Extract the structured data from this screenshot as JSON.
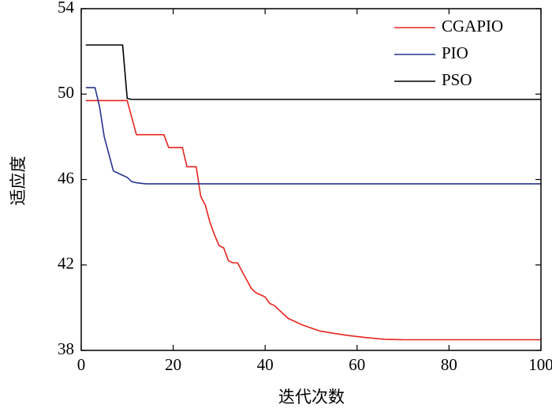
{
  "chart_data": {
    "type": "line",
    "title": "",
    "xlabel": "迭代次数",
    "ylabel": "适应度",
    "xlim": [
      0,
      100
    ],
    "ylim": [
      38,
      54
    ],
    "xticks": [
      0,
      20,
      40,
      60,
      80,
      100
    ],
    "yticks": [
      38,
      42,
      46,
      50,
      54
    ],
    "xtick_labels": [
      "0",
      "20",
      "40",
      "60",
      "80",
      "100"
    ],
    "ytick_labels": [
      "38",
      "42",
      "46",
      "50",
      "54"
    ],
    "grid": false,
    "legend_position": "top-right",
    "series": [
      {
        "name": "CGAPIO",
        "color": "#e8231e",
        "x": [
          1,
          10,
          12,
          18,
          19,
          20,
          21,
          22,
          23,
          24,
          25,
          26,
          27,
          28,
          29,
          30,
          31,
          32,
          33,
          34,
          35,
          36,
          37,
          38,
          39,
          40,
          41,
          42,
          43,
          44,
          45,
          46,
          48,
          50,
          52,
          55,
          58,
          62,
          66,
          70,
          80,
          90,
          100
        ],
        "y": [
          49.7,
          49.7,
          48.1,
          48.1,
          47.5,
          47.5,
          47.5,
          47.5,
          46.6,
          46.6,
          46.6,
          45.2,
          44.8,
          44.0,
          43.4,
          42.9,
          42.8,
          42.2,
          42.1,
          42.1,
          41.7,
          41.3,
          40.9,
          40.7,
          40.6,
          40.5,
          40.2,
          40.1,
          39.9,
          39.7,
          39.5,
          39.4,
          39.2,
          39.05,
          38.9,
          38.8,
          38.7,
          38.6,
          38.52,
          38.5,
          38.5,
          38.5,
          38.5
        ]
      },
      {
        "name": "PIO",
        "color": "#27338f",
        "x": [
          1,
          3,
          4,
          5,
          6,
          7,
          8,
          9,
          10,
          11,
          12,
          14,
          20,
          40,
          60,
          80,
          100
        ],
        "y": [
          50.3,
          50.3,
          49.4,
          48.0,
          47.2,
          46.4,
          46.3,
          46.2,
          46.1,
          45.9,
          45.85,
          45.8,
          45.8,
          45.8,
          45.8,
          45.8,
          45.8
        ]
      },
      {
        "name": "PSO",
        "color": "#000000",
        "x": [
          1,
          9,
          10,
          11,
          20,
          40,
          60,
          80,
          100
        ],
        "y": [
          52.3,
          52.3,
          49.8,
          49.75,
          49.75,
          49.75,
          49.75,
          49.75,
          49.75
        ]
      }
    ]
  }
}
